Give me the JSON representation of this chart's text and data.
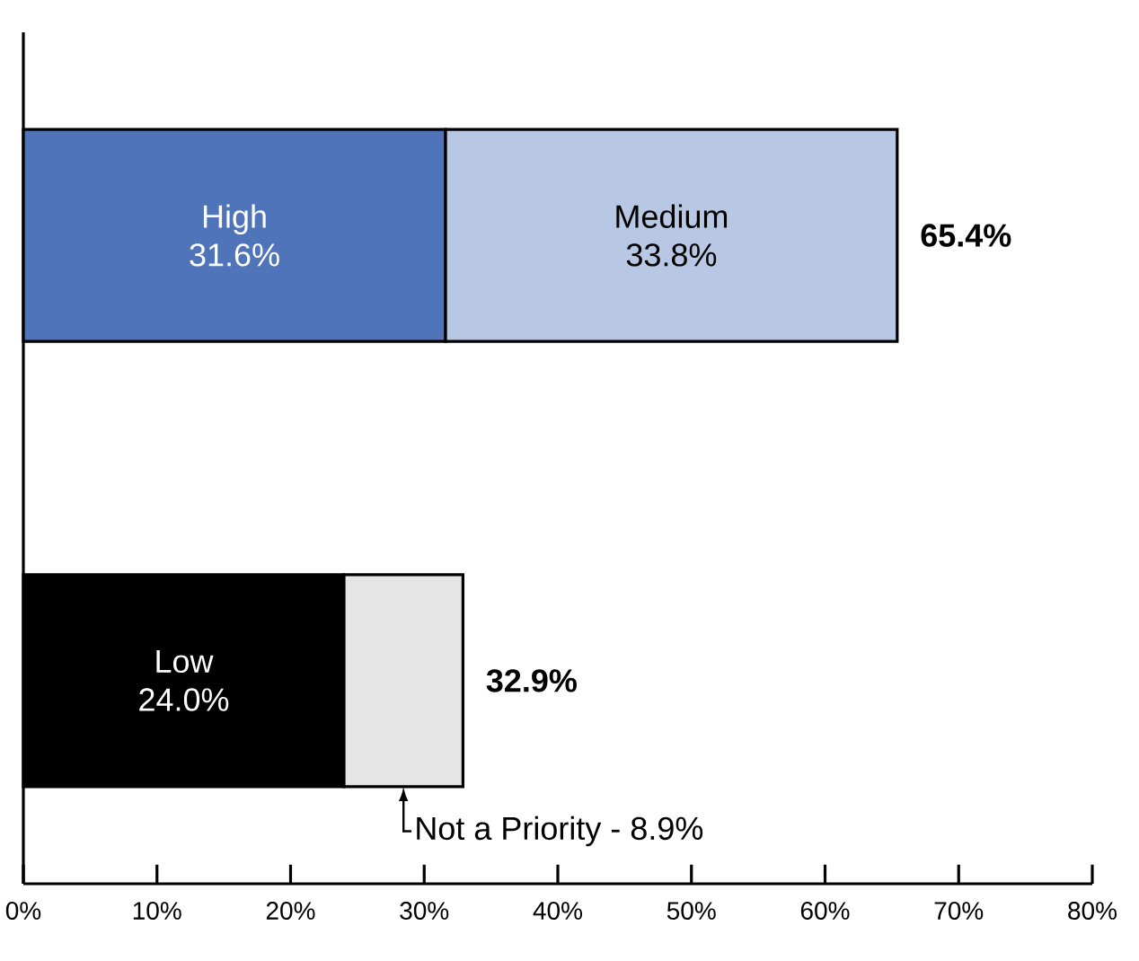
{
  "chart_data": {
    "type": "bar",
    "orientation": "horizontal",
    "stacked": true,
    "categories": [
      null,
      null
    ],
    "series": [
      {
        "name": "High",
        "color": "#4f74b9",
        "values": [
          31.6,
          null
        ],
        "value_labels": [
          "31.6%",
          null
        ]
      },
      {
        "name": "Medium",
        "color": "#b8c8e4",
        "values": [
          33.8,
          null
        ],
        "value_labels": [
          "33.8%",
          null
        ]
      },
      {
        "name": "Low",
        "color": "#000000",
        "values": [
          null,
          24.0
        ],
        "value_labels": [
          null,
          "24.0%"
        ]
      },
      {
        "name": "Not a Priority - 8.9%",
        "color": "#e5e5e5",
        "values": [
          null,
          8.9
        ]
      }
    ],
    "totals": [
      "65.4%",
      "32.9%"
    ],
    "xlim": [
      0,
      80
    ],
    "xticks": [
      {
        "value": 0,
        "label": "0%"
      },
      {
        "value": 10,
        "label": "10%"
      },
      {
        "value": 20,
        "label": "20%"
      },
      {
        "value": 30,
        "label": "30%"
      },
      {
        "value": 40,
        "label": "40%"
      },
      {
        "value": 50,
        "label": "50%"
      },
      {
        "value": 60,
        "label": "60%"
      },
      {
        "value": 70,
        "label": "70%"
      },
      {
        "value": 80,
        "label": "80%"
      }
    ]
  }
}
